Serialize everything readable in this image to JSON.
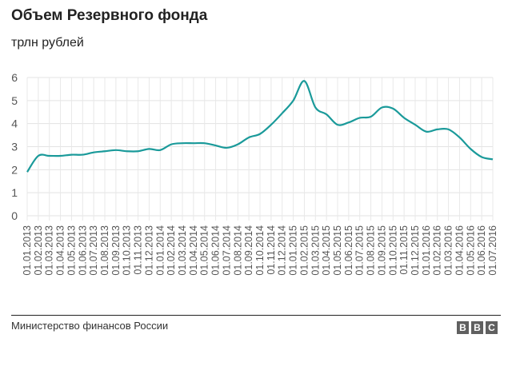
{
  "chart_data": {
    "type": "line",
    "title": "Объем Резервного фонда",
    "subtitle": "трлн рублей",
    "xlabel": "",
    "ylabel": "",
    "ylim": [
      0,
      6
    ],
    "yticks": [
      "0",
      "1",
      "2",
      "3",
      "4",
      "5",
      "6"
    ],
    "grid": true,
    "line_color": "#1a9a9a",
    "categories": [
      "01.01.2013",
      "01.02.2013",
      "01.03.2013",
      "01.04.2013",
      "01.05.2013",
      "01.06.2013",
      "01.07.2013",
      "01.08.2013",
      "01.09.2013",
      "01.10.2013",
      "01.11.2013",
      "01.12.2013",
      "01.01.2014",
      "01.02.2014",
      "01.03.2014",
      "01.04.2014",
      "01.05.2014",
      "01.06.2014",
      "01.07.2014",
      "01.08.2014",
      "01.09.2014",
      "01.10.2014",
      "01.11.2014",
      "01.12.2014",
      "01.01.2015",
      "01.02.2015",
      "01.03.2015",
      "01.04.2015",
      "01.05.2015",
      "01.06.2015",
      "01.07.2015",
      "01.08.2015",
      "01.09.2015",
      "01.10.2015",
      "01.11.2015",
      "01.12.2015",
      "01.01.2016",
      "01.02.2016",
      "01.03.2016",
      "01.04.2016",
      "01.05.2016",
      "01.06.2016",
      "01.07.2016"
    ],
    "values": [
      1.9,
      2.6,
      2.6,
      2.6,
      2.65,
      2.65,
      2.75,
      2.8,
      2.85,
      2.8,
      2.8,
      2.9,
      2.85,
      3.1,
      3.15,
      3.15,
      3.15,
      3.05,
      2.95,
      3.1,
      3.4,
      3.55,
      3.95,
      4.45,
      5.0,
      5.85,
      4.7,
      4.4,
      3.95,
      4.05,
      4.25,
      4.3,
      4.7,
      4.65,
      4.25,
      3.95,
      3.65,
      3.75,
      3.75,
      3.4,
      2.9,
      2.55,
      2.45
    ]
  },
  "footer": {
    "source": "Министерство финансов России",
    "logo": [
      "B",
      "B",
      "C"
    ]
  }
}
